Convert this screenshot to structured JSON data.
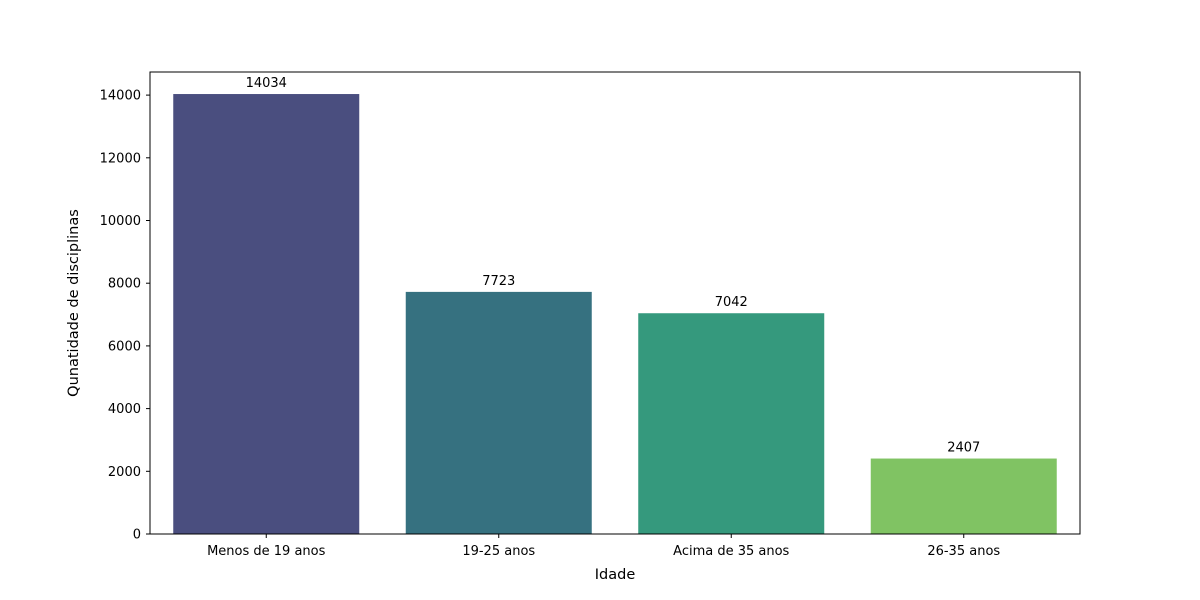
{
  "chart_data": {
    "type": "bar",
    "title": "",
    "xlabel": "Idade",
    "ylabel": "Qunatidade de disciplinas",
    "categories": [
      "Menos de 19 anos",
      "19-25 anos",
      "Acima de 35 anos",
      "26-35 anos"
    ],
    "values": [
      14034,
      7723,
      7042,
      2407
    ],
    "data_labels": [
      "14034",
      "7723",
      "7042",
      "2407"
    ],
    "colors": [
      "#4a4e7f",
      "#367180",
      "#35997d",
      "#80c363"
    ],
    "ylim": [
      0,
      14737
    ],
    "yticks": [
      0,
      2000,
      4000,
      6000,
      8000,
      10000,
      12000,
      14000
    ],
    "ytick_labels": [
      "0",
      "2000",
      "4000",
      "6000",
      "8000",
      "10000",
      "12000",
      "14000"
    ],
    "grid": false,
    "legend": "none"
  }
}
